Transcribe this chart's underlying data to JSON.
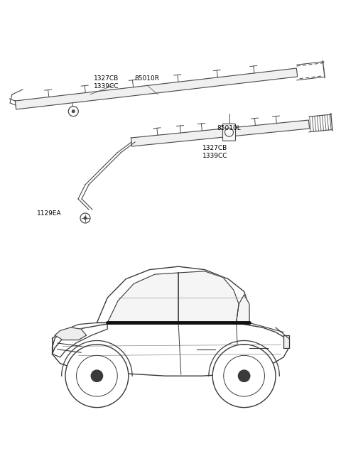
{
  "background_color": "#ffffff",
  "fig_width": 4.8,
  "fig_height": 6.56,
  "dpi": 100,
  "line_color": "#4a4a4a",
  "text_color": "#000000",
  "label_fontsize": 6.5,
  "labels": {
    "top_cb": "1327CB",
    "top_cc": "1339CC",
    "top_part": "85010R",
    "bot_part": "85010L",
    "bot_cb": "1327CB",
    "bot_cc": "1339CC",
    "screw": "1129EA"
  }
}
